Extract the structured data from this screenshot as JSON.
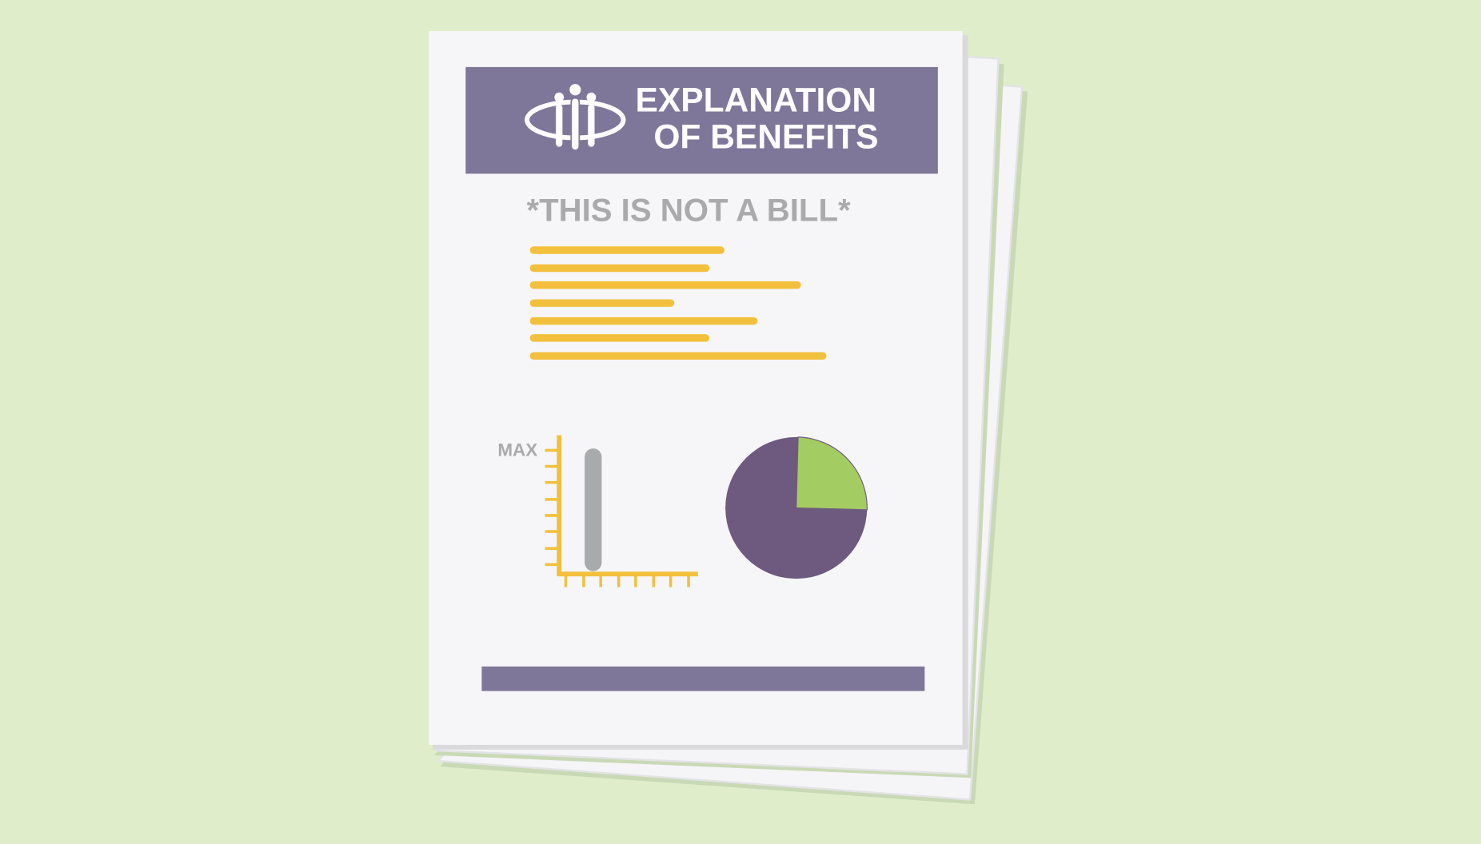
{
  "header": {
    "title_line1": "EXPLANATION",
    "title_line2": "OF BENEFITS"
  },
  "notice": "*THIS IS NOT A BILL*",
  "chart_label": "MAX"
}
